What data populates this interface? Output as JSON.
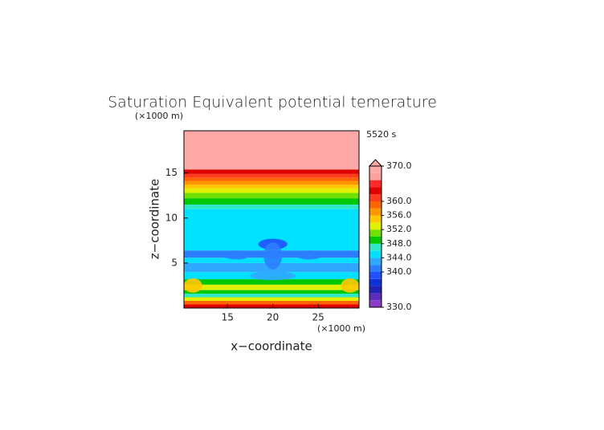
{
  "chart_data": {
    "type": "contour",
    "title": "Saturation Equivalent potential temerature",
    "time_label": "5520 s",
    "xlabel": "x−coordinate",
    "ylabel": "z−coordinate",
    "x_unit": "(×1000 m)",
    "y_unit": "(×1000 m)",
    "xlim": [
      10.2,
      29.5
    ],
    "ylim": [
      0,
      19.7
    ],
    "xticks": [
      15,
      20,
      25
    ],
    "yticks": [
      5,
      10,
      15
    ],
    "field": {
      "z": [
        0,
        0.4,
        0.8,
        1.2,
        1.6,
        2.0,
        2.6,
        3.2,
        4.0,
        5.0,
        5.6,
        6.4,
        11.0,
        11.5,
        12.2,
        12.8,
        13.3,
        13.7,
        14.1,
        14.5,
        14.9,
        15.4,
        19.7
      ],
      "values": [
        363,
        358,
        353,
        347,
        349,
        353,
        349,
        345,
        343,
        345,
        341,
        345,
        347,
        349,
        351,
        353,
        355,
        357,
        359,
        361,
        363,
        368
      ]
    },
    "features": {
      "x": [
        20,
        20,
        11.2,
        28.5,
        16,
        24,
        20
      ],
      "y": [
        7.1,
        5.8,
        2.5,
        2.5,
        5.9,
        5.9,
        3.6
      ],
      "rx": [
        1.6,
        1.0,
        1.0,
        1.0,
        1.5,
        1.5,
        2.5
      ],
      "ry": [
        0.6,
        1.5,
        0.8,
        0.8,
        0.5,
        0.5,
        0.5
      ],
      "values": [
        338,
        340,
        354,
        354,
        341,
        341,
        342
      ]
    },
    "colorbar": {
      "levels": [
        330,
        332,
        334,
        336,
        338,
        340,
        342,
        344,
        346,
        348,
        350,
        352,
        354,
        356,
        358,
        360,
        362,
        364,
        366,
        368,
        370
      ],
      "colors": [
        "#8a3cc8",
        "#5a2dbf",
        "#2222b8",
        "#1030d8",
        "#2050ff",
        "#2d7dff",
        "#30a8ff",
        "#00e0ff",
        "#30e8c8",
        "#00c800",
        "#70e000",
        "#e0f000",
        "#ffc800",
        "#ff9600",
        "#ff6400",
        "#ff3c1e",
        "#e00000",
        "#ff2a2a",
        "#ffa0a0",
        "#ffa8a8"
      ],
      "ticks": [
        {
          "value": 330,
          "label": "330.0"
        },
        {
          "value": 340,
          "label": "340.0"
        },
        {
          "value": 344,
          "label": "344.0"
        },
        {
          "value": 348,
          "label": "348.0"
        },
        {
          "value": 352,
          "label": "352.0"
        },
        {
          "value": 356,
          "label": "356.0"
        },
        {
          "value": 360,
          "label": "360.0"
        },
        {
          "value": 370,
          "label": "370.0"
        }
      ]
    }
  }
}
